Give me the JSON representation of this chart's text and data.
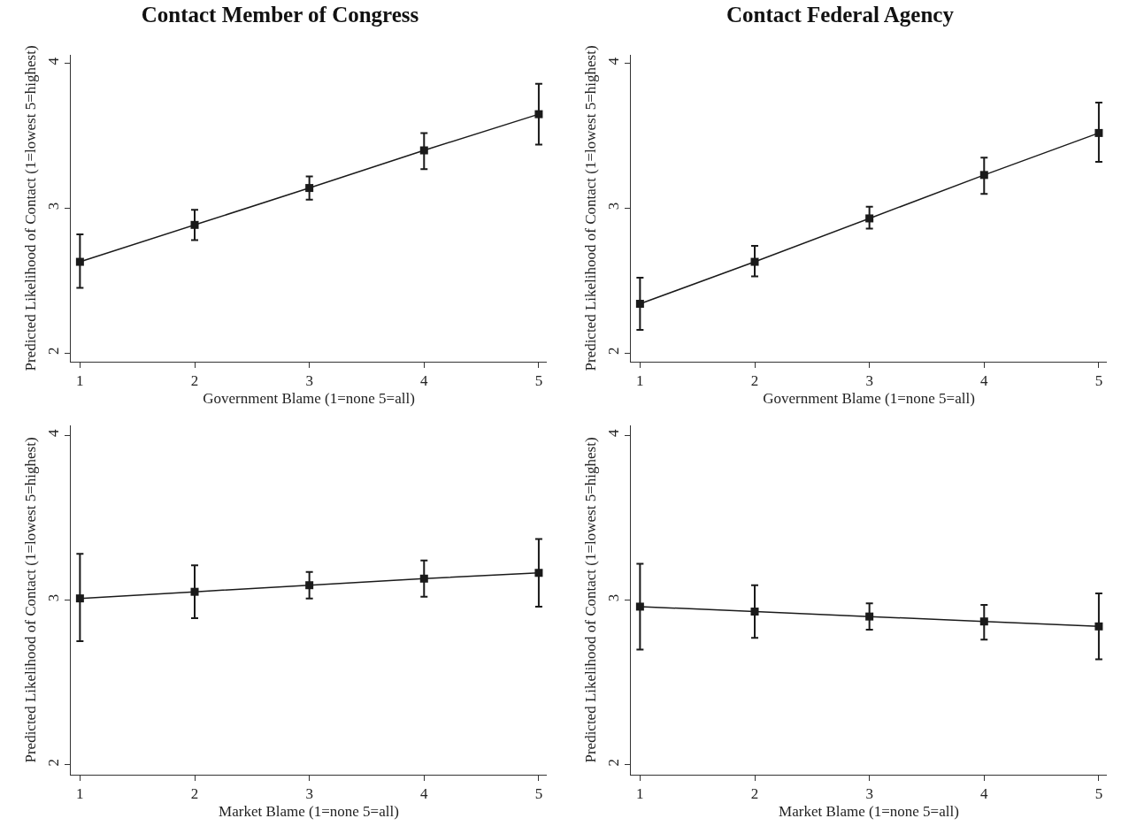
{
  "chart_data": [
    {
      "type": "line",
      "title": "Contact Member of Congress",
      "xlabel": "Government Blame (1=none 5=all)",
      "ylabel": "Predicted Likelihood of Contact (1=lowest 5=highest)",
      "x": [
        1,
        2,
        3,
        4,
        5
      ],
      "series": [
        {
          "color": "#1a1a1a",
          "values": [
            2.63,
            2.885,
            3.14,
            3.4,
            3.65
          ],
          "errors": [
            [
              2.45,
              2.82
            ],
            [
              2.78,
              2.99
            ],
            [
              3.06,
              3.22
            ],
            [
              3.27,
              3.52
            ],
            [
              3.44,
              3.86
            ]
          ]
        }
      ],
      "xlim": [
        0.92,
        5.07
      ],
      "ylim": [
        1.94,
        4.06
      ],
      "xticks": [
        1,
        2,
        3,
        4,
        5
      ],
      "yticks": [
        2,
        3,
        4
      ],
      "marker": "square",
      "line_style": "solid"
    },
    {
      "type": "line",
      "title": "Contact Federal Agency",
      "xlabel": "Government Blame (1=none 5=all)",
      "ylabel": "Predicted Likelihood of Contact (1=lowest 5=highest)",
      "x": [
        1,
        2,
        3,
        4,
        5
      ],
      "series": [
        {
          "color": "#1a1a1a",
          "values": [
            2.34,
            2.63,
            2.93,
            3.23,
            3.52
          ],
          "errors": [
            [
              2.16,
              2.52
            ],
            [
              2.53,
              2.74
            ],
            [
              2.86,
              3.01
            ],
            [
              3.1,
              3.35
            ],
            [
              3.32,
              3.73
            ]
          ]
        }
      ],
      "xlim": [
        0.92,
        5.07
      ],
      "ylim": [
        1.94,
        4.06
      ],
      "xticks": [
        1,
        2,
        3,
        4,
        5
      ],
      "yticks": [
        2,
        3,
        4
      ],
      "marker": "square",
      "line_style": "solid"
    },
    {
      "type": "line",
      "xlabel": "Market Blame (1=none 5=all)",
      "ylabel": "Predicted Likelihood of Contact (1=lowest 5=highest)",
      "x": [
        1,
        2,
        3,
        4,
        5
      ],
      "series": [
        {
          "color": "#1a1a1a",
          "values": [
            3.01,
            3.05,
            3.09,
            3.13,
            3.165
          ],
          "errors": [
            [
              2.75,
              3.28
            ],
            [
              2.89,
              3.21
            ],
            [
              3.01,
              3.17
            ],
            [
              3.02,
              3.24
            ],
            [
              2.96,
              3.37
            ]
          ]
        }
      ],
      "xlim": [
        0.92,
        5.07
      ],
      "ylim": [
        1.94,
        4.06
      ],
      "xticks": [
        1,
        2,
        3,
        4,
        5
      ],
      "yticks": [
        2,
        3,
        4
      ],
      "marker": "square",
      "line_style": "solid"
    },
    {
      "type": "line",
      "xlabel": "Market Blame (1=none 5=all)",
      "ylabel": "Predicted Likelihood of Contact (1=lowest 5=highest)",
      "x": [
        1,
        2,
        3,
        4,
        5
      ],
      "series": [
        {
          "color": "#1a1a1a",
          "values": [
            2.96,
            2.93,
            2.9,
            2.87,
            2.84
          ],
          "errors": [
            [
              2.7,
              3.22
            ],
            [
              2.77,
              3.09
            ],
            [
              2.82,
              2.98
            ],
            [
              2.76,
              2.97
            ],
            [
              2.64,
              3.04
            ]
          ]
        }
      ],
      "xlim": [
        0.92,
        5.07
      ],
      "ylim": [
        1.94,
        4.06
      ],
      "xticks": [
        1,
        2,
        3,
        4,
        5
      ],
      "yticks": [
        2,
        3,
        4
      ],
      "marker": "square",
      "line_style": "solid"
    }
  ]
}
